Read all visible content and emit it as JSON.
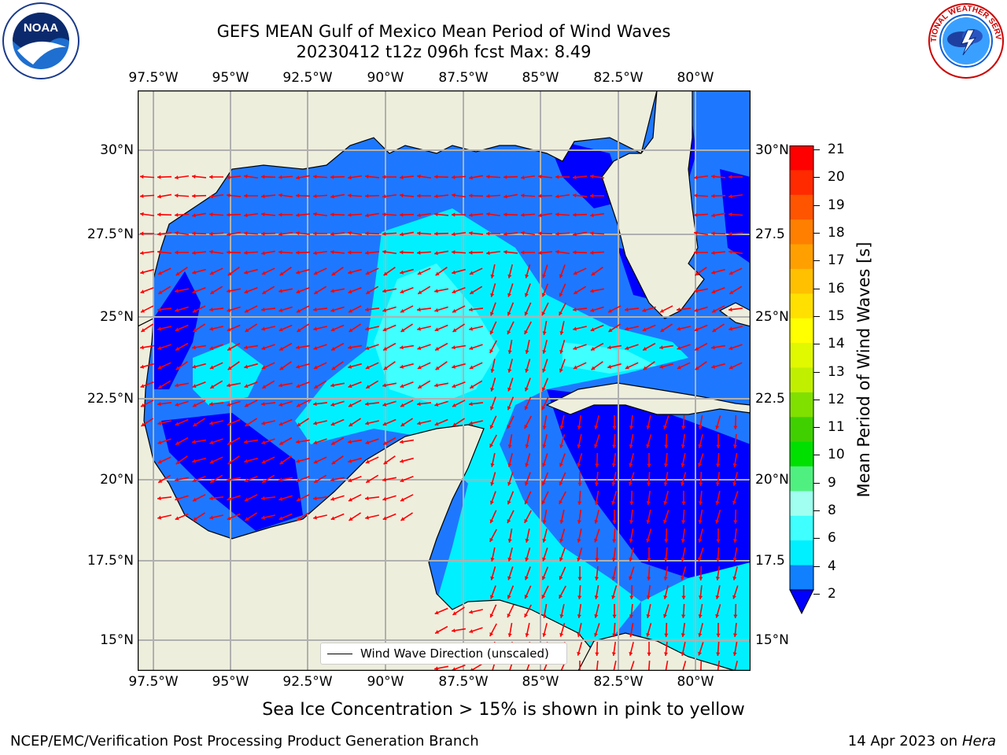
{
  "header": {
    "title_line1": "GEFS MEAN Gulf of Mexico Mean Period of Wind Waves",
    "title_line2": "20230412 t12z 096h fcst   Max: 8.49"
  },
  "logos": {
    "left": {
      "icon": "noaa-logo",
      "text": "NOAA",
      "ring_text": "NATIONAL OCEANIC AND ATMOSPHERIC ADMINISTRATION · U.S. DEPARTMENT OF COMMERCE"
    },
    "right": {
      "icon": "nws-logo",
      "ring_text": "NATIONAL WEATHER SERVICE"
    }
  },
  "map": {
    "lon_ticks": [
      "97.5°W",
      "95°W",
      "92.5°W",
      "90°W",
      "87.5°W",
      "85°W",
      "82.5°W",
      "80°W"
    ],
    "lat_ticks": [
      "30°N",
      "27.5°N",
      "25°N",
      "22.5°N",
      "20°N",
      "17.5°N",
      "15°N"
    ],
    "lat_ticks_right": [
      "30°N",
      "27.5",
      "25°N",
      "22.5",
      "20°N",
      "17.5",
      "15°N"
    ],
    "legend_label": "Wind Wave Direction (unscaled)",
    "colors": {
      "land": "#eeeedd",
      "coast": "#000000",
      "grid": "#b0b0b0",
      "arrow": "#ff0000"
    }
  },
  "colorbar": {
    "label": "Mean Period of Wind Waves [s]",
    "ticks": [
      "21",
      "20",
      "19",
      "18",
      "17",
      "16",
      "15",
      "14",
      "13",
      "12",
      "11",
      "10",
      "9",
      "8",
      "6",
      "4",
      "2"
    ],
    "colors_top_to_bottom": [
      "#ff0000",
      "#ff2a00",
      "#ff5500",
      "#ff7f00",
      "#ffa000",
      "#ffc000",
      "#ffe000",
      "#ffff00",
      "#e0f800",
      "#c0f000",
      "#80e000",
      "#40d000",
      "#00e000",
      "#50f080",
      "#a0fff0",
      "#40ffff",
      "#00f0ff",
      "#1080ff"
    ],
    "extend_color": "#0000ff"
  },
  "footer": {
    "sea_ice_note": "Sea Ice Concentration > 15% is shown in pink to yellow",
    "credit": "NCEP/EMC/Verification Post Processing Product Generation Branch",
    "date": "14 Apr 2023 on",
    "host": "Hera"
  }
}
